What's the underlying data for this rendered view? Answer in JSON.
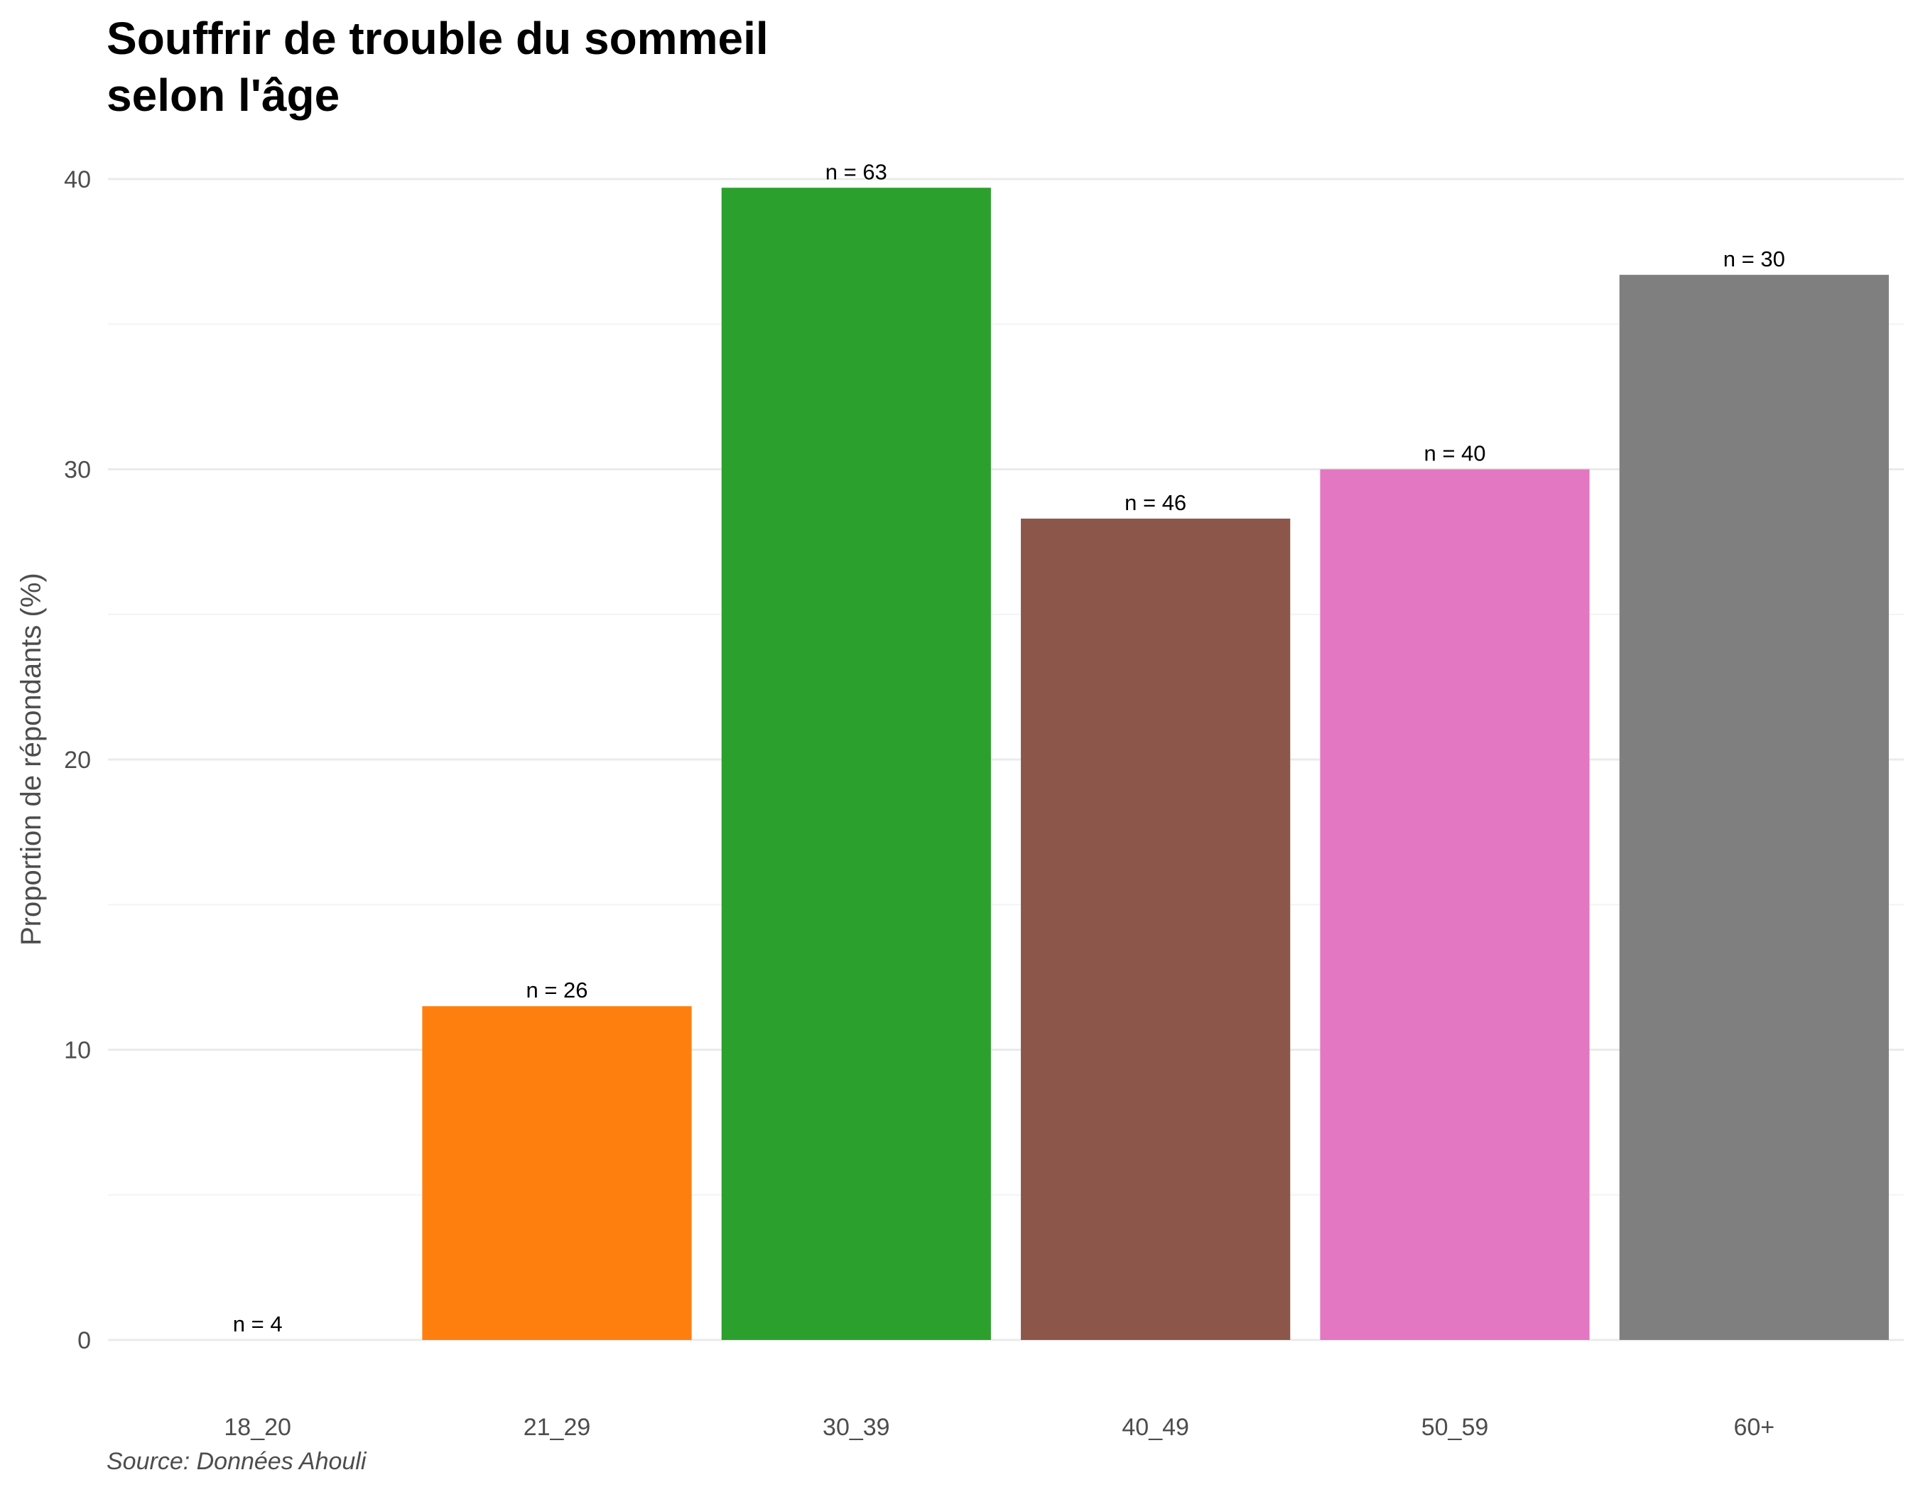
{
  "chart_data": {
    "type": "bar",
    "title_lines": [
      "Souffrir de trouble du sommeil",
      "selon l'âge"
    ],
    "ylabel": "Proportion de répondants (%)",
    "xlabel": "",
    "caption": "Source: Données Ahouli",
    "categories": [
      "18_20",
      "21_29",
      "30_39",
      "40_49",
      "50_59",
      "60+"
    ],
    "values": [
      0,
      11.5,
      39.7,
      28.3,
      30.0,
      36.7
    ],
    "bar_labels": [
      "n = 4",
      "n = 26",
      "n = 63",
      "n = 46",
      "n = 40",
      "n = 30"
    ],
    "colors": [
      "#1f77b4",
      "#ff7f0e",
      "#2ca02c",
      "#8c564b",
      "#e377c2",
      "#7f7f7f"
    ],
    "yticks": [
      0,
      10,
      20,
      30,
      40
    ],
    "ylim": [
      0,
      40
    ],
    "grid": true,
    "legend": "none"
  }
}
